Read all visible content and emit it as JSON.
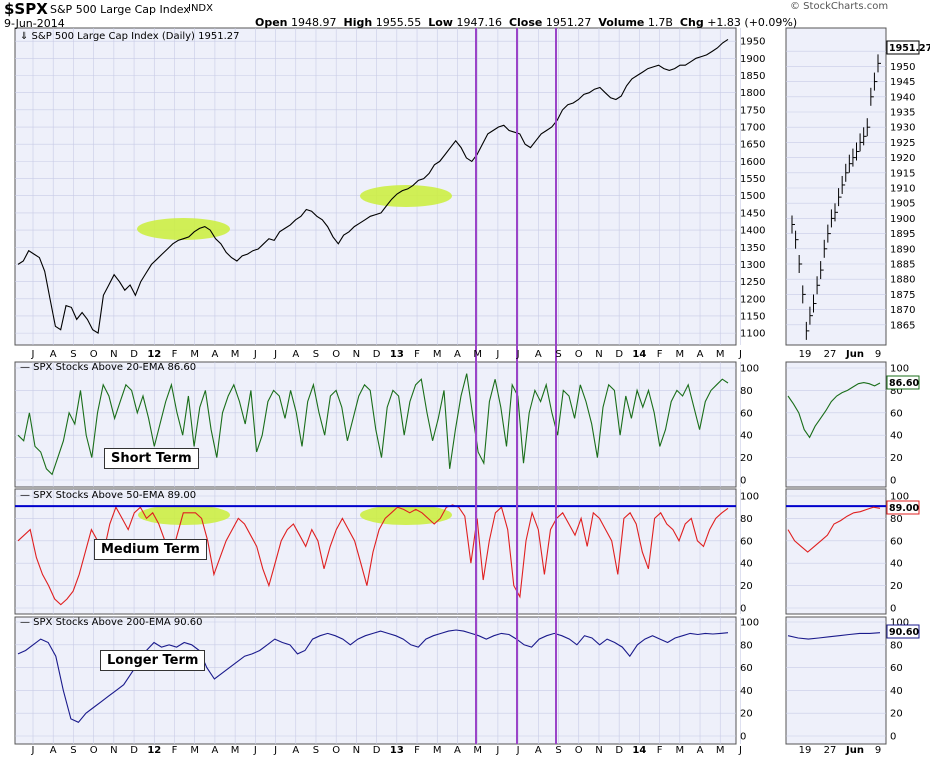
{
  "header": {
    "symbol": "$SPX",
    "name": "S&P 500 Large Cap Index",
    "exchange": "INDX",
    "date": "9-Jun-2014",
    "brand": "© StockCharts.com",
    "open_label": "Open",
    "open": "1948.97",
    "high_label": "High",
    "high": "1955.55",
    "low_label": "Low",
    "low": "1947.16",
    "close_label": "Close",
    "close": "1951.27",
    "volume_label": "Volume",
    "volume": "1.7B",
    "chg_label": "Chg",
    "chg": "+1.83 (+0.09%)"
  },
  "colors": {
    "price": "#000000",
    "ema20": "#1a6e1a",
    "ema50": "#e02020",
    "ema200": "#1a1a8c",
    "highlight": "#ccee44",
    "highlight_trace_price": "#3a32b8",
    "highlight_trace_ema50": "#c03aa0",
    "event_line": "#9a44c8",
    "ref_line": "#0000cc",
    "panel_bg": "#eef0fa",
    "grid": "#c8cbe6"
  },
  "labels": {
    "short": "Short Term",
    "medium": "Medium Term",
    "long": "Longer Term"
  },
  "chart_data": [
    {
      "type": "line",
      "title": "S&P 500 Large Cap Index (Daily) 1951.27",
      "last_value": "1951.27",
      "ylim": [
        1080,
        1965
      ],
      "y_ticks": [
        1100,
        1150,
        1200,
        1250,
        1300,
        1350,
        1400,
        1450,
        1500,
        1550,
        1600,
        1650,
        1700,
        1750,
        1800,
        1850,
        1900,
        1950
      ],
      "x_ticks": [
        "J",
        "A",
        "S",
        "O",
        "N",
        "D",
        "12",
        "F",
        "M",
        "A",
        "M",
        "J",
        "J",
        "A",
        "S",
        "O",
        "N",
        "D",
        "13",
        "F",
        "M",
        "A",
        "M",
        "J",
        "J",
        "A",
        "S",
        "O",
        "N",
        "D",
        "14",
        "F",
        "M",
        "A",
        "M",
        "J"
      ],
      "series": [
        {
          "values": [
            1300,
            1310,
            1340,
            1330,
            1320,
            1280,
            1200,
            1120,
            1110,
            1180,
            1175,
            1140,
            1160,
            1140,
            1110,
            1100,
            1210,
            1240,
            1270,
            1250,
            1225,
            1240,
            1210,
            1250,
            1275,
            1300,
            1315,
            1330,
            1345,
            1360,
            1370,
            1375,
            1380,
            1395,
            1405,
            1410,
            1400,
            1375,
            1360,
            1335,
            1320,
            1310,
            1325,
            1330,
            1340,
            1345,
            1360,
            1375,
            1370,
            1395,
            1405,
            1415,
            1430,
            1440,
            1460,
            1455,
            1440,
            1430,
            1410,
            1380,
            1360,
            1385,
            1395,
            1410,
            1420,
            1430,
            1440,
            1445,
            1450,
            1470,
            1490,
            1505,
            1515,
            1520,
            1530,
            1545,
            1550,
            1565,
            1590,
            1600,
            1620,
            1640,
            1660,
            1640,
            1610,
            1600,
            1620,
            1650,
            1680,
            1690,
            1700,
            1705,
            1690,
            1685,
            1680,
            1650,
            1640,
            1660,
            1680,
            1690,
            1700,
            1720,
            1750,
            1765,
            1770,
            1780,
            1795,
            1800,
            1810,
            1815,
            1800,
            1785,
            1780,
            1790,
            1820,
            1840,
            1850,
            1860,
            1870,
            1875,
            1880,
            1870,
            1865,
            1870,
            1880,
            1880,
            1890,
            1900,
            1905,
            1910,
            1920,
            1930,
            1945,
            1955
          ]
        }
      ],
      "highlights": [
        "2012-03",
        "2013-02"
      ]
    },
    {
      "type": "line",
      "title": "SPX Stocks Above 20-EMA 86.60",
      "last_value": "86.60",
      "ylim": [
        0,
        100
      ],
      "y_ticks": [
        0,
        20,
        40,
        60,
        80,
        100
      ],
      "series": [
        {
          "values": [
            40,
            35,
            60,
            30,
            25,
            10,
            5,
            20,
            35,
            60,
            50,
            80,
            40,
            20,
            60,
            85,
            75,
            55,
            70,
            85,
            80,
            60,
            75,
            55,
            30,
            50,
            70,
            85,
            60,
            40,
            75,
            30,
            65,
            80,
            45,
            20,
            60,
            75,
            85,
            70,
            50,
            80,
            25,
            40,
            70,
            80,
            75,
            55,
            80,
            60,
            30,
            70,
            85,
            60,
            40,
            75,
            80,
            65,
            35,
            55,
            75,
            85,
            80,
            45,
            20,
            65,
            80,
            75,
            40,
            70,
            85,
            90,
            60,
            35,
            55,
            80,
            10,
            45,
            75,
            95,
            60,
            25,
            15,
            70,
            90,
            65,
            30,
            85,
            75,
            15,
            60,
            80,
            70,
            85,
            60,
            40,
            80,
            75,
            55,
            85,
            70,
            50,
            20,
            65,
            85,
            80,
            40,
            75,
            55,
            80,
            65,
            80,
            60,
            30,
            45,
            70,
            80,
            75,
            85,
            65,
            45,
            70,
            80,
            85,
            90,
            86.6
          ]
        }
      ]
    },
    {
      "type": "line",
      "title": "SPX Stocks Above 50-EMA 89.00",
      "last_value": "89.00",
      "ylim": [
        0,
        100
      ],
      "y_ticks": [
        0,
        20,
        40,
        60,
        80,
        100
      ],
      "reference_line": 91,
      "series": [
        {
          "values": [
            60,
            65,
            70,
            45,
            30,
            20,
            8,
            3,
            8,
            15,
            30,
            50,
            70,
            60,
            50,
            75,
            90,
            80,
            70,
            85,
            90,
            80,
            85,
            75,
            60,
            45,
            65,
            85,
            85,
            85,
            80,
            60,
            30,
            45,
            60,
            70,
            80,
            75,
            65,
            55,
            35,
            20,
            40,
            60,
            70,
            75,
            65,
            55,
            70,
            60,
            35,
            55,
            70,
            80,
            70,
            60,
            40,
            20,
            50,
            70,
            80,
            85,
            90,
            88,
            85,
            88,
            85,
            80,
            75,
            80,
            90,
            92,
            90,
            82,
            40,
            80,
            25,
            60,
            85,
            90,
            70,
            20,
            10,
            60,
            85,
            70,
            30,
            70,
            80,
            85,
            75,
            65,
            80,
            55,
            85,
            80,
            70,
            60,
            30,
            80,
            85,
            75,
            50,
            35,
            80,
            85,
            75,
            70,
            60,
            75,
            80,
            60,
            55,
            70,
            80,
            85,
            89
          ]
        }
      ]
    },
    {
      "type": "line",
      "title": "SPX Stocks Above 200-EMA 90.60",
      "last_value": "90.60",
      "ylim": [
        0,
        100
      ],
      "y_ticks": [
        0,
        20,
        40,
        60,
        80,
        100
      ],
      "series": [
        {
          "values": [
            72,
            75,
            80,
            85,
            82,
            70,
            40,
            15,
            12,
            20,
            25,
            30,
            35,
            40,
            45,
            55,
            65,
            75,
            82,
            78,
            80,
            78,
            82,
            80,
            75,
            60,
            50,
            55,
            60,
            65,
            70,
            72,
            75,
            80,
            85,
            82,
            80,
            72,
            75,
            85,
            88,
            90,
            88,
            85,
            80,
            85,
            88,
            90,
            92,
            90,
            88,
            85,
            80,
            78,
            85,
            88,
            90,
            92,
            93,
            92,
            90,
            88,
            85,
            88,
            90,
            89,
            85,
            80,
            78,
            85,
            88,
            90,
            88,
            85,
            80,
            88,
            86,
            80,
            85,
            82,
            78,
            70,
            80,
            85,
            88,
            85,
            82,
            86,
            88,
            90,
            89,
            90,
            89.5,
            90,
            90.6
          ]
        }
      ]
    }
  ],
  "zoom": {
    "x_ticks": [
      "19",
      "27",
      "Jun",
      "9"
    ],
    "price_ticks": [
      1865,
      1870,
      1875,
      1880,
      1885,
      1890,
      1895,
      1900,
      1905,
      1910,
      1915,
      1920,
      1925,
      1930,
      1935,
      1940,
      1945,
      1950,
      1955
    ],
    "price_values": [
      1898,
      1893,
      1885,
      1875,
      1863,
      1868,
      1872,
      1878,
      1883,
      1890,
      1895,
      1900,
      1902,
      1907,
      1911,
      1915,
      1918,
      1920,
      1922,
      1925,
      1927,
      1930,
      1940,
      1945,
      1951
    ],
    "ema20_values": [
      75,
      68,
      60,
      45,
      38,
      48,
      55,
      62,
      70,
      75,
      78,
      80,
      83,
      86,
      87,
      86,
      84,
      86.6
    ],
    "ema50_values": [
      70,
      60,
      55,
      50,
      55,
      60,
      65,
      75,
      78,
      82,
      85,
      86,
      88,
      90,
      89
    ],
    "ema200_values": [
      88,
      86,
      85,
      86,
      87,
      88,
      89,
      90,
      90,
      90.6
    ]
  }
}
